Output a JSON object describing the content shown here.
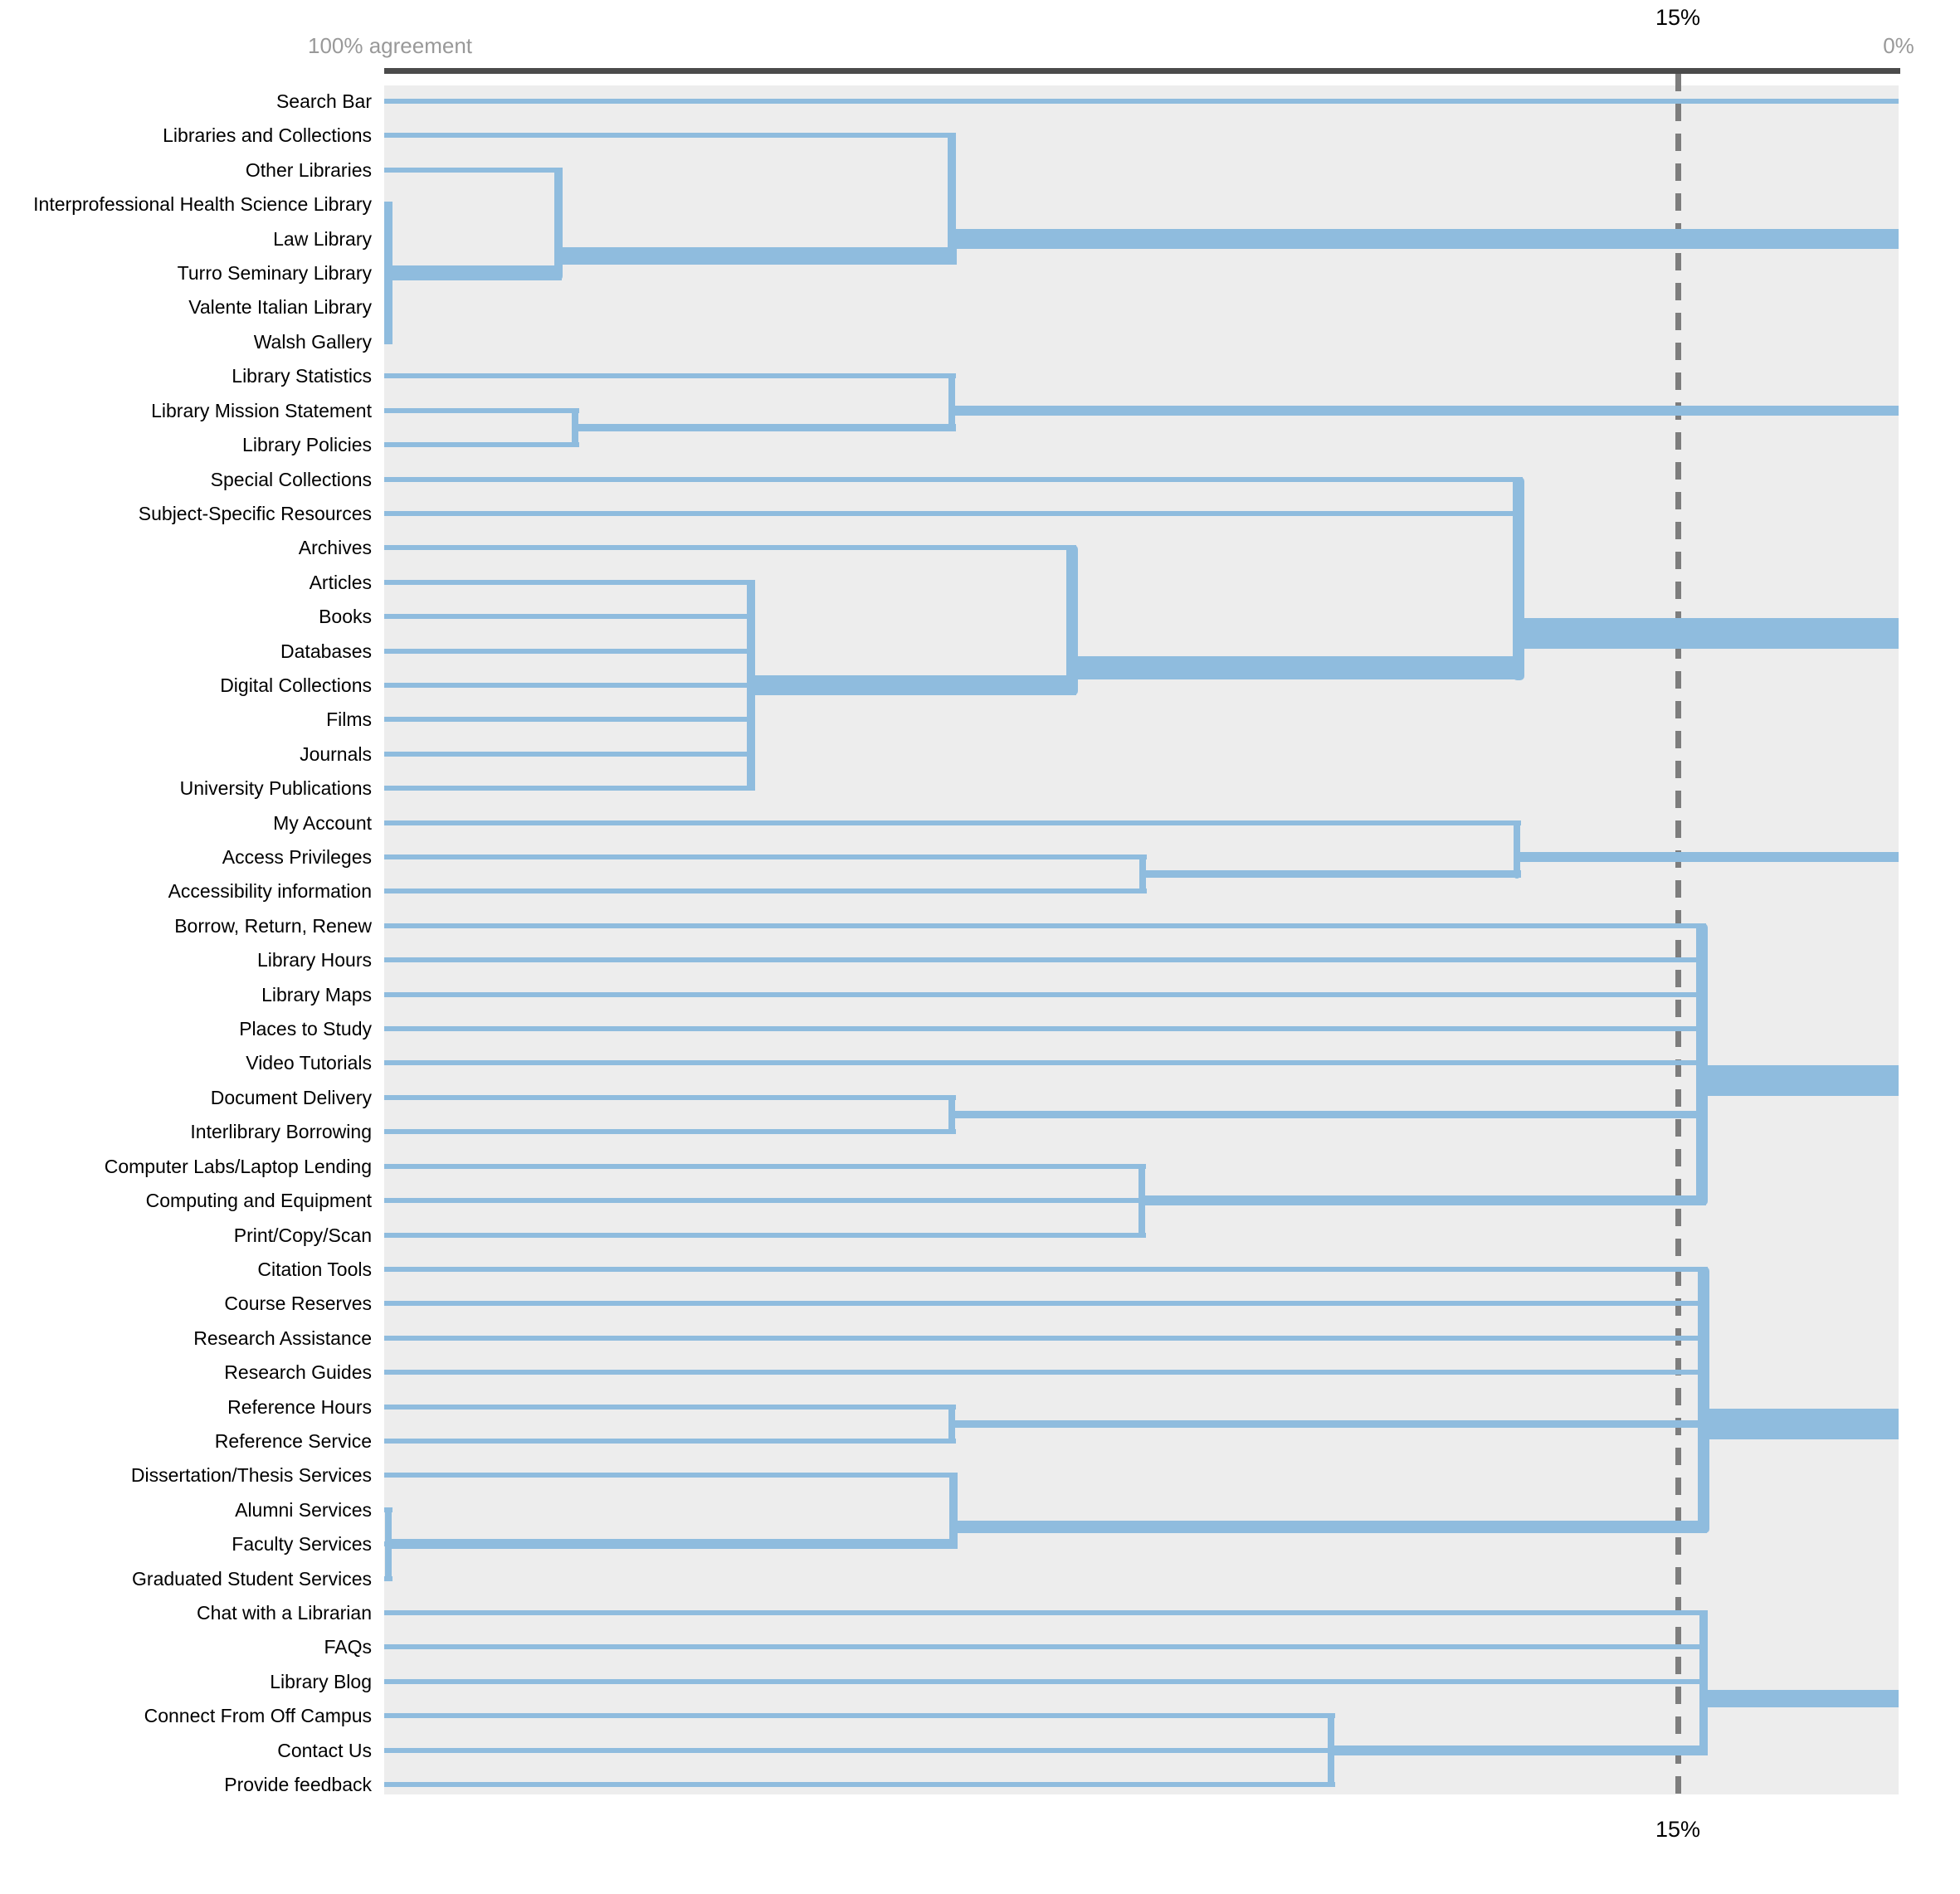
{
  "colors": {
    "line_blue": "#8fbcde",
    "chart_background": "#ededed",
    "axis_bar": "#4b4b4b",
    "threshold_dash": "#7d7d7d",
    "label_text": "#000000",
    "axis_text": "#999999"
  },
  "chart_data": {
    "type": "dendrogram",
    "orientation": "left-to-right",
    "axis": {
      "left_label": "100% agreement",
      "right_label": "0%",
      "threshold_label_top": "15%",
      "threshold_label_bottom": "15%",
      "threshold_percent": 15,
      "range": [
        100,
        0
      ],
      "grid": false
    },
    "items": [
      "Search Bar",
      "Libraries and Collections",
      "Other Libraries",
      "Interprofessional Health Science Library",
      "Law Library",
      "Turro Seminary Library",
      "Valente Italian Library",
      "Walsh Gallery",
      "Library Statistics",
      "Library Mission Statement",
      "Library Policies",
      "Special Collections",
      "Subject-Specific Resources",
      "Archives",
      "Articles",
      "Books",
      "Databases",
      "Digital Collections",
      "Films",
      "Journals",
      "University Publications",
      "My Account",
      "Access Privileges",
      "Accessibility information",
      "Borrow, Return, Renew",
      "Library Hours",
      "Library Maps",
      "Places to Study",
      "Video Tutorials",
      "Document Delivery",
      "Interlibrary Borrowing",
      "Computer Labs/Laptop Lending",
      "Computing and Equipment",
      "Print/Copy/Scan",
      "Citation Tools",
      "Course Reserves",
      "Research Assistance",
      "Research Guides",
      "Reference Hours",
      "Reference Service",
      "Dissertation/Thesis Services",
      "Alumni Services",
      "Faculty Services",
      "Graduated Student Services",
      "Chat with a Librarian",
      "FAQs",
      "Library Blog",
      "Connect From Off Campus",
      "Contact Us",
      "Provide feedback"
    ],
    "merges": [
      {
        "id": "m_libraries5",
        "children": [
          "L3",
          "L4",
          "L5",
          "L6",
          "L7"
        ],
        "agreement": 99.7
      },
      {
        "id": "m_alumni3",
        "children": [
          "L41",
          "L42",
          "L43"
        ],
        "agreement": 99.7
      },
      {
        "id": "m_other6",
        "children": [
          "L2",
          "m_libraries5"
        ],
        "agreement": 88.5
      },
      {
        "id": "m_mission2",
        "children": [
          "L9",
          "L10"
        ],
        "agreement": 87.4
      },
      {
        "id": "m_pubs7",
        "children": [
          "L14",
          "L15",
          "L16",
          "L17",
          "L18",
          "L19",
          "L20"
        ],
        "agreement": 75.8
      },
      {
        "id": "m_collections7",
        "children": [
          "L1",
          "m_other6"
        ],
        "agreement": 62.5
      },
      {
        "id": "m_stats3",
        "children": [
          "L8",
          "m_mission2"
        ],
        "agreement": 62.5
      },
      {
        "id": "m_delivery2",
        "children": [
          "L29",
          "L30"
        ],
        "agreement": 62.5
      },
      {
        "id": "m_reference2",
        "children": [
          "L38",
          "L39"
        ],
        "agreement": 62.5
      },
      {
        "id": "m_dissertation4",
        "children": [
          "L40",
          "m_alumni3"
        ],
        "agreement": 62.4
      },
      {
        "id": "m_archives8",
        "children": [
          "L13",
          "m_pubs7"
        ],
        "agreement": 54.6
      },
      {
        "id": "m_computing3",
        "children": [
          "L31",
          "L32",
          "L33"
        ],
        "agreement": 50.0
      },
      {
        "id": "m_access2",
        "children": [
          "L22",
          "L23"
        ],
        "agreement": 49.9
      },
      {
        "id": "m_offcampus3",
        "children": [
          "L47",
          "L48",
          "L49"
        ],
        "agreement": 37.5
      },
      {
        "id": "m_account3",
        "children": [
          "L21",
          "m_access2"
        ],
        "agreement": 25.2
      },
      {
        "id": "m_resources10",
        "children": [
          "L11",
          "L12",
          "m_archives8"
        ],
        "agreement": 25.1
      },
      {
        "id": "m_services10",
        "children": [
          "L24",
          "L25",
          "L26",
          "L27",
          "L28",
          "m_delivery2",
          "m_computing3"
        ],
        "agreement": 13.0
      },
      {
        "id": "m_research10",
        "children": [
          "L34",
          "L35",
          "L36",
          "L37",
          "m_reference2",
          "m_dissertation4"
        ],
        "agreement": 12.9
      },
      {
        "id": "m_help6",
        "children": [
          "L44",
          "L45",
          "L46",
          "m_offcampus3"
        ],
        "agreement": 12.9
      }
    ],
    "roots": [
      "L0",
      "m_collections7",
      "m_stats3",
      "m_resources10",
      "m_account3",
      "m_services10",
      "m_research10",
      "m_help6"
    ]
  }
}
